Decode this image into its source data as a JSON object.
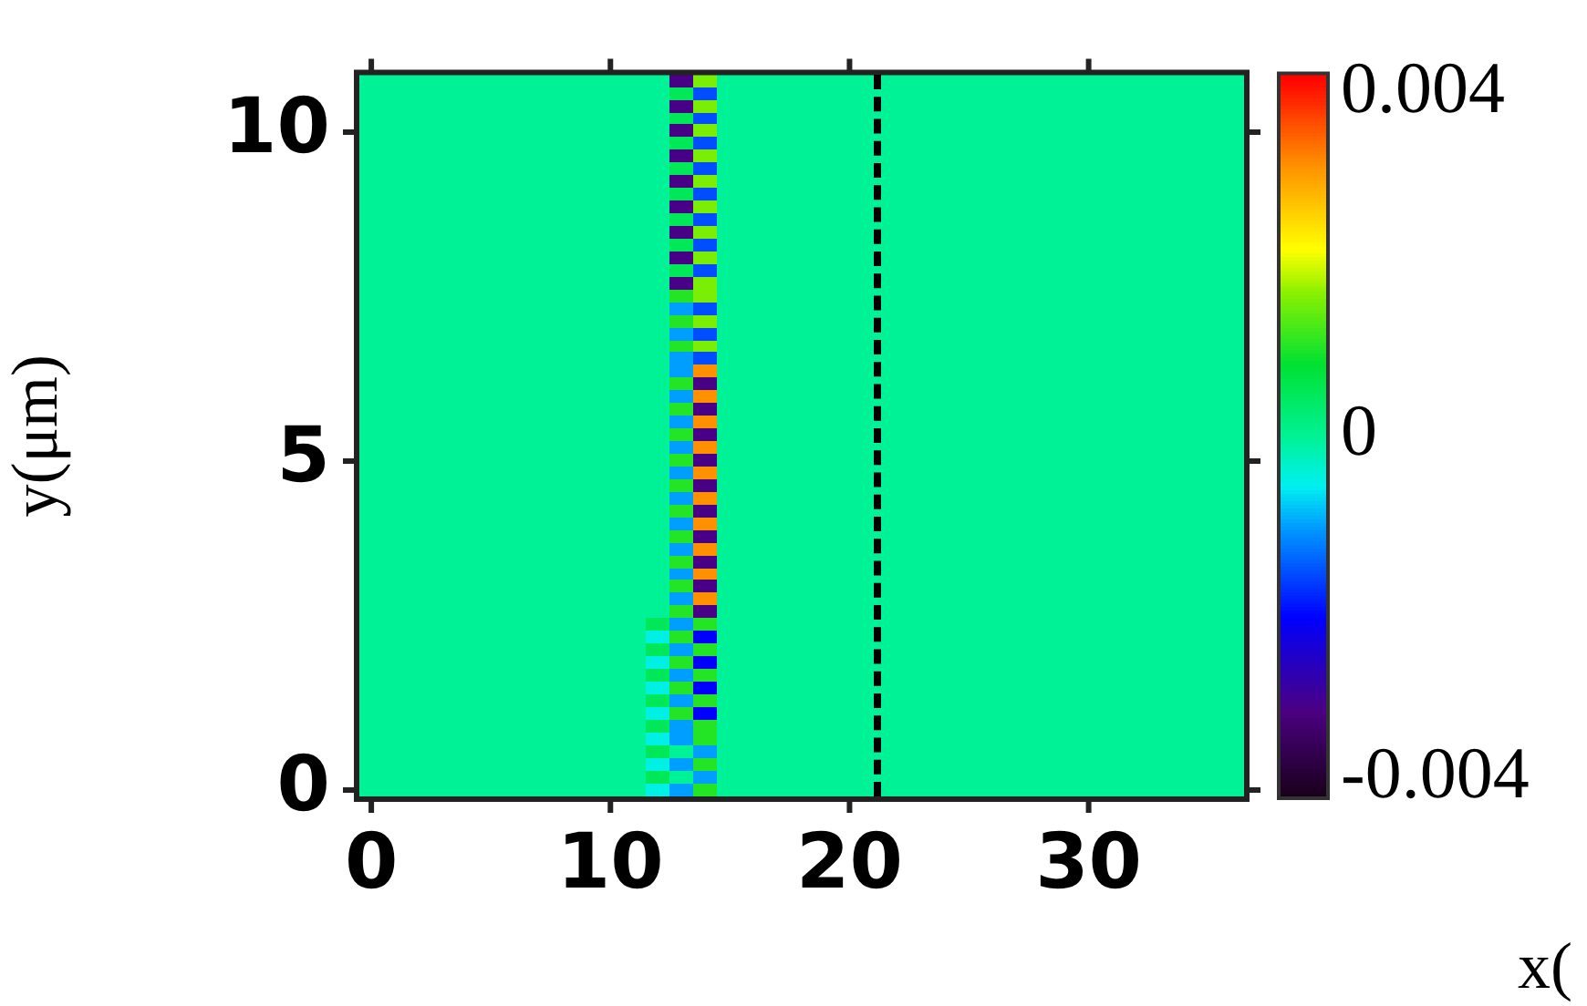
{
  "chart_data": {
    "type": "heatmap",
    "xlabel": "x(",
    "ylabel": "y(μm)",
    "categories": [
      "0",
      null,
      null,
      null,
      null,
      null,
      null,
      null,
      null,
      null,
      "10",
      null,
      null,
      null,
      null,
      null,
      null,
      null,
      null,
      null,
      "20",
      null,
      null,
      null,
      null,
      null,
      null,
      null,
      null,
      null,
      "30",
      null,
      null,
      null,
      null,
      null,
      null
    ],
    "y_categories": [
      null,
      null,
      null,
      null,
      "10",
      null,
      null,
      null,
      null,
      null,
      null,
      null,
      null,
      null,
      null,
      null,
      null,
      null,
      null,
      null,
      null,
      null,
      null,
      null,
      null,
      null,
      null,
      null,
      null,
      null,
      "5",
      null,
      null,
      null,
      null,
      null,
      null,
      null,
      null,
      null,
      null,
      null,
      null,
      null,
      null,
      null,
      null,
      null,
      null,
      null,
      null,
      null,
      null,
      null,
      null,
      null,
      "0"
    ],
    "clim": [
      -0.004,
      0.004
    ],
    "cticks": [
      -0.004,
      0,
      0.004
    ],
    "cells": [
      [
        0,
        0,
        0,
        0,
        0,
        0,
        0,
        0,
        0,
        0,
        0,
        0,
        0,
        -0.003,
        0.0015,
        0,
        0,
        0,
        0,
        0,
        0,
        0,
        0,
        0,
        0,
        0,
        0,
        0,
        0,
        0,
        0,
        0,
        0,
        0,
        0,
        0,
        0
      ],
      [
        0,
        0,
        0,
        0,
        0,
        0,
        0,
        0,
        0,
        0,
        0,
        0,
        0,
        0.0005,
        -0.0015,
        0,
        0,
        0,
        0,
        0,
        0,
        0,
        0,
        0,
        0,
        0,
        0,
        0,
        0,
        0,
        0,
        0,
        0,
        0,
        0,
        0,
        0
      ],
      [
        0,
        0,
        0,
        0,
        0,
        0,
        0,
        0,
        0,
        0,
        0,
        0,
        0,
        -0.003,
        0.0015,
        0,
        0,
        0,
        0,
        0,
        0,
        0,
        0,
        0,
        0,
        0,
        0,
        0,
        0,
        0,
        0,
        0,
        0,
        0,
        0,
        0,
        0
      ],
      [
        0,
        0,
        0,
        0,
        0,
        0,
        0,
        0,
        0,
        0,
        0,
        0,
        0,
        0.0005,
        -0.0015,
        0,
        0,
        0,
        0,
        0,
        0,
        0,
        0,
        0,
        0,
        0,
        0,
        0,
        0,
        0,
        0,
        0,
        0,
        0,
        0,
        0,
        0
      ],
      [
        0,
        0,
        0,
        0,
        0,
        0,
        0,
        0,
        0,
        0,
        0,
        0,
        0,
        -0.003,
        0.0015,
        0,
        0,
        0,
        0,
        0,
        0,
        0,
        0,
        0,
        0,
        0,
        0,
        0,
        0,
        0,
        0,
        0,
        0,
        0,
        0,
        0,
        0
      ],
      [
        0,
        0,
        0,
        0,
        0,
        0,
        0,
        0,
        0,
        0,
        0,
        0,
        0,
        0.0005,
        -0.0015,
        0,
        0,
        0,
        0,
        0,
        0,
        0,
        0,
        0,
        0,
        0,
        0,
        0,
        0,
        0,
        0,
        0,
        0,
        0,
        0,
        0,
        0
      ],
      [
        0,
        0,
        0,
        0,
        0,
        0,
        0,
        0,
        0,
        0,
        0,
        0,
        0,
        -0.003,
        0.0015,
        0,
        0,
        0,
        0,
        0,
        0,
        0,
        0,
        0,
        0,
        0,
        0,
        0,
        0,
        0,
        0,
        0,
        0,
        0,
        0,
        0,
        0
      ],
      [
        0,
        0,
        0,
        0,
        0,
        0,
        0,
        0,
        0,
        0,
        0,
        0,
        0,
        0.0005,
        -0.0015,
        0,
        0,
        0,
        0,
        0,
        0,
        0,
        0,
        0,
        0,
        0,
        0,
        0,
        0,
        0,
        0,
        0,
        0,
        0,
        0,
        0,
        0
      ],
      [
        0,
        0,
        0,
        0,
        0,
        0,
        0,
        0,
        0,
        0,
        0,
        0,
        0,
        -0.003,
        0.0015,
        0,
        0,
        0,
        0,
        0,
        0,
        0,
        0,
        0,
        0,
        0,
        0,
        0,
        0,
        0,
        0,
        0,
        0,
        0,
        0,
        0,
        0
      ],
      [
        0,
        0,
        0,
        0,
        0,
        0,
        0,
        0,
        0,
        0,
        0,
        0,
        0,
        0.0005,
        -0.0015,
        0,
        0,
        0,
        0,
        0,
        0,
        0,
        0,
        0,
        0,
        0,
        0,
        0,
        0,
        0,
        0,
        0,
        0,
        0,
        0,
        0,
        0
      ],
      [
        0,
        0,
        0,
        0,
        0,
        0,
        0,
        0,
        0,
        0,
        0,
        0,
        0,
        -0.003,
        0.0015,
        0,
        0,
        0,
        0,
        0,
        0,
        0,
        0,
        0,
        0,
        0,
        0,
        0,
        0,
        0,
        0,
        0,
        0,
        0,
        0,
        0,
        0
      ],
      [
        0,
        0,
        0,
        0,
        0,
        0,
        0,
        0,
        0,
        0,
        0,
        0,
        0,
        0.0005,
        -0.0015,
        0,
        0,
        0,
        0,
        0,
        0,
        0,
        0,
        0,
        0,
        0,
        0,
        0,
        0,
        0,
        0,
        0,
        0,
        0,
        0,
        0,
        0
      ],
      [
        0,
        0,
        0,
        0,
        0,
        0,
        0,
        0,
        0,
        0,
        0,
        0,
        0,
        -0.003,
        0.0015,
        0,
        0,
        0,
        0,
        0,
        0,
        0,
        0,
        0,
        0,
        0,
        0,
        0,
        0,
        0,
        0,
        0,
        0,
        0,
        0,
        0,
        0
      ],
      [
        0,
        0,
        0,
        0,
        0,
        0,
        0,
        0,
        0,
        0,
        0,
        0,
        0,
        0.0005,
        -0.0015,
        0,
        0,
        0,
        0,
        0,
        0,
        0,
        0,
        0,
        0,
        0,
        0,
        0,
        0,
        0,
        0,
        0,
        0,
        0,
        0,
        0,
        0
      ],
      [
        0,
        0,
        0,
        0,
        0,
        0,
        0,
        0,
        0,
        0,
        0,
        0,
        0,
        -0.003,
        0.0015,
        0,
        0,
        0,
        0,
        0,
        0,
        0,
        0,
        0,
        0,
        0,
        0,
        0,
        0,
        0,
        0,
        0,
        0,
        0,
        0,
        0,
        0
      ],
      [
        0,
        0,
        0,
        0,
        0,
        0,
        0,
        0,
        0,
        0,
        0,
        0,
        0,
        0.0005,
        -0.0015,
        0,
        0,
        0,
        0,
        0,
        0,
        0,
        0,
        0,
        0,
        0,
        0,
        0,
        0,
        0,
        0,
        0,
        0,
        0,
        0,
        0,
        0
      ],
      [
        0,
        0,
        0,
        0,
        0,
        0,
        0,
        0,
        0,
        0,
        0,
        0,
        0,
        -0.003,
        0.0015,
        0,
        0,
        0,
        0,
        0,
        0,
        0,
        0,
        0,
        0,
        0,
        0,
        0,
        0,
        0,
        0,
        0,
        0,
        0,
        0,
        0,
        0
      ],
      [
        0,
        0,
        0,
        0,
        0,
        0,
        0,
        0,
        0,
        0,
        0,
        0,
        0,
        0.001,
        0.0015,
        0,
        0,
        0,
        0,
        0,
        0,
        0,
        0,
        0,
        0,
        0,
        0,
        0,
        0,
        0,
        0,
        0,
        0,
        0,
        0,
        0,
        0
      ],
      [
        0,
        0,
        0,
        0,
        0,
        0,
        0,
        0,
        0,
        0,
        0,
        0,
        0,
        -0.001,
        -0.0015,
        0,
        0,
        0,
        0,
        0,
        0,
        0,
        0,
        0,
        0,
        0,
        0,
        0,
        0,
        0,
        0,
        0,
        0,
        0,
        0,
        0,
        0
      ],
      [
        0,
        0,
        0,
        0,
        0,
        0,
        0,
        0,
        0,
        0,
        0,
        0,
        0,
        0.001,
        0.0015,
        0,
        0,
        0,
        0,
        0,
        0,
        0,
        0,
        0,
        0,
        0,
        0,
        0,
        0,
        0,
        0,
        0,
        0,
        0,
        0,
        0,
        0
      ],
      [
        0,
        0,
        0,
        0,
        0,
        0,
        0,
        0,
        0,
        0,
        0,
        0,
        0,
        -0.001,
        -0.0015,
        0,
        0,
        0,
        0,
        0,
        0,
        0,
        0,
        0,
        0,
        0,
        0,
        0,
        0,
        0,
        0,
        0,
        0,
        0,
        0,
        0,
        0
      ],
      [
        0,
        0,
        0,
        0,
        0,
        0,
        0,
        0,
        0,
        0,
        0,
        0,
        0,
        0.001,
        0.0015,
        0,
        0,
        0,
        0,
        0,
        0,
        0,
        0,
        0,
        0,
        0,
        0,
        0,
        0,
        0,
        0,
        0,
        0,
        0,
        0,
        0,
        0
      ],
      [
        0,
        0,
        0,
        0,
        0,
        0,
        0,
        0,
        0,
        0,
        0,
        0,
        0,
        -0.001,
        -0.0015,
        0,
        0,
        0,
        0,
        0,
        0,
        0,
        0,
        0,
        0,
        0,
        0,
        0,
        0,
        0,
        0,
        0,
        0,
        0,
        0,
        0,
        0
      ],
      [
        0,
        0,
        0,
        0,
        0,
        0,
        0,
        0,
        0,
        0,
        0,
        0,
        0,
        -0.001,
        0.003,
        0,
        0,
        0,
        0,
        0,
        0,
        0,
        0,
        0,
        0,
        0,
        0,
        0,
        0,
        0,
        0,
        0,
        0,
        0,
        0,
        0,
        0
      ],
      [
        0,
        0,
        0,
        0,
        0,
        0,
        0,
        0,
        0,
        0,
        0,
        0,
        0,
        0.001,
        -0.003,
        0,
        0,
        0,
        0,
        0,
        0,
        0,
        0,
        0,
        0,
        0,
        0,
        0,
        0,
        0,
        0,
        0,
        0,
        0,
        0,
        0,
        0
      ],
      [
        0,
        0,
        0,
        0,
        0,
        0,
        0,
        0,
        0,
        0,
        0,
        0,
        0,
        -0.001,
        0.003,
        0,
        0,
        0,
        0,
        0,
        0,
        0,
        0,
        0,
        0,
        0,
        0,
        0,
        0,
        0,
        0,
        0,
        0,
        0,
        0,
        0,
        0
      ],
      [
        0,
        0,
        0,
        0,
        0,
        0,
        0,
        0,
        0,
        0,
        0,
        0,
        0,
        0.001,
        -0.003,
        0,
        0,
        0,
        0,
        0,
        0,
        0,
        0,
        0,
        0,
        0,
        0,
        0,
        0,
        0,
        0,
        0,
        0,
        0,
        0,
        0,
        0
      ],
      [
        0,
        0,
        0,
        0,
        0,
        0,
        0,
        0,
        0,
        0,
        0,
        0,
        0,
        -0.001,
        0.003,
        0,
        0,
        0,
        0,
        0,
        0,
        0,
        0,
        0,
        0,
        0,
        0,
        0,
        0,
        0,
        0,
        0,
        0,
        0,
        0,
        0,
        0
      ],
      [
        0,
        0,
        0,
        0,
        0,
        0,
        0,
        0,
        0,
        0,
        0,
        0,
        0,
        0.001,
        -0.003,
        0,
        0,
        0,
        0,
        0,
        0,
        0,
        0,
        0,
        0,
        0,
        0,
        0,
        0,
        0,
        0,
        0,
        0,
        0,
        0,
        0,
        0
      ],
      [
        0,
        0,
        0,
        0,
        0,
        0,
        0,
        0,
        0,
        0,
        0,
        0,
        0,
        -0.001,
        0.003,
        0,
        0,
        0,
        0,
        0,
        0,
        0,
        0,
        0,
        0,
        0,
        0,
        0,
        0,
        0,
        0,
        0,
        0,
        0,
        0,
        0,
        0
      ],
      [
        0,
        0,
        0,
        0,
        0,
        0,
        0,
        0,
        0,
        0,
        0,
        0,
        0,
        0.001,
        -0.003,
        0,
        0,
        0,
        0,
        0,
        0,
        0,
        0,
        0,
        0,
        0,
        0,
        0,
        0,
        0,
        0,
        0,
        0,
        0,
        0,
        0,
        0
      ],
      [
        0,
        0,
        0,
        0,
        0,
        0,
        0,
        0,
        0,
        0,
        0,
        0,
        0,
        -0.001,
        0.003,
        0,
        0,
        0,
        0,
        0,
        0,
        0,
        0,
        0,
        0,
        0,
        0,
        0,
        0,
        0,
        0,
        0,
        0,
        0,
        0,
        0,
        0
      ],
      [
        0,
        0,
        0,
        0,
        0,
        0,
        0,
        0,
        0,
        0,
        0,
        0,
        0,
        0.001,
        -0.003,
        0,
        0,
        0,
        0,
        0,
        0,
        0,
        0,
        0,
        0,
        0,
        0,
        0,
        0,
        0,
        0,
        0,
        0,
        0,
        0,
        0,
        0
      ],
      [
        0,
        0,
        0,
        0,
        0,
        0,
        0,
        0,
        0,
        0,
        0,
        0,
        0,
        -0.001,
        0.003,
        0,
        0,
        0,
        0,
        0,
        0,
        0,
        0,
        0,
        0,
        0,
        0,
        0,
        0,
        0,
        0,
        0,
        0,
        0,
        0,
        0,
        0
      ],
      [
        0,
        0,
        0,
        0,
        0,
        0,
        0,
        0,
        0,
        0,
        0,
        0,
        0,
        0.001,
        -0.003,
        0,
        0,
        0,
        0,
        0,
        0,
        0,
        0,
        0,
        0,
        0,
        0,
        0,
        0,
        0,
        0,
        0,
        0,
        0,
        0,
        0,
        0
      ],
      [
        0,
        0,
        0,
        0,
        0,
        0,
        0,
        0,
        0,
        0,
        0,
        0,
        0,
        -0.001,
        0.003,
        0,
        0,
        0,
        0,
        0,
        0,
        0,
        0,
        0,
        0,
        0,
        0,
        0,
        0,
        0,
        0,
        0,
        0,
        0,
        0,
        0,
        0
      ],
      [
        0,
        0,
        0,
        0,
        0,
        0,
        0,
        0,
        0,
        0,
        0,
        0,
        0,
        0.001,
        -0.003,
        0,
        0,
        0,
        0,
        0,
        0,
        0,
        0,
        0,
        0,
        0,
        0,
        0,
        0,
        0,
        0,
        0,
        0,
        0,
        0,
        0,
        0
      ],
      [
        0,
        0,
        0,
        0,
        0,
        0,
        0,
        0,
        0,
        0,
        0,
        0,
        0,
        -0.001,
        0.003,
        0,
        0,
        0,
        0,
        0,
        0,
        0,
        0,
        0,
        0,
        0,
        0,
        0,
        0,
        0,
        0,
        0,
        0,
        0,
        0,
        0,
        0
      ],
      [
        0,
        0,
        0,
        0,
        0,
        0,
        0,
        0,
        0,
        0,
        0,
        0,
        0,
        0.001,
        -0.003,
        0,
        0,
        0,
        0,
        0,
        0,
        0,
        0,
        0,
        0,
        0,
        0,
        0,
        0,
        0,
        0,
        0,
        0,
        0,
        0,
        0,
        0
      ],
      [
        0,
        0,
        0,
        0,
        0,
        0,
        0,
        0,
        0,
        0,
        0,
        0,
        0,
        -0.001,
        0.003,
        0,
        0,
        0,
        0,
        0,
        0,
        0,
        0,
        0,
        0,
        0,
        0,
        0,
        0,
        0,
        0,
        0,
        0,
        0,
        0,
        0,
        0
      ],
      [
        0,
        0,
        0,
        0,
        0,
        0,
        0,
        0,
        0,
        0,
        0,
        0,
        0,
        0.001,
        -0.003,
        0,
        0,
        0,
        0,
        0,
        0,
        0,
        0,
        0,
        0,
        0,
        0,
        0,
        0,
        0,
        0,
        0,
        0,
        0,
        0,
        0,
        0
      ],
      [
        0,
        0,
        0,
        0,
        0,
        0,
        0,
        0,
        0,
        0,
        0,
        0,
        0,
        -0.001,
        0.003,
        0,
        0,
        0,
        0,
        0,
        0,
        0,
        0,
        0,
        0,
        0,
        0,
        0,
        0,
        0,
        0,
        0,
        0,
        0,
        0,
        0,
        0
      ],
      [
        0,
        0,
        0,
        0,
        0,
        0,
        0,
        0,
        0,
        0,
        0,
        0,
        0,
        0.001,
        -0.003,
        0,
        0,
        0,
        0,
        0,
        0,
        0,
        0,
        0,
        0,
        0,
        0,
        0,
        0,
        0,
        0,
        0,
        0,
        0,
        0,
        0,
        0
      ],
      [
        0,
        0,
        0,
        0,
        0,
        0,
        0,
        0,
        0,
        0,
        0,
        0,
        0.0005,
        -0.001,
        0.001,
        0,
        0,
        0,
        0,
        0,
        0,
        0,
        0,
        0,
        0,
        0,
        0,
        0,
        0,
        0,
        0,
        0,
        0,
        0,
        0,
        0,
        0
      ],
      [
        0,
        0,
        0,
        0,
        0,
        0,
        0,
        0,
        0,
        0,
        0,
        0,
        -0.0005,
        0.001,
        -0.002,
        0,
        0,
        0,
        0,
        0,
        0,
        0,
        0,
        0,
        0,
        0,
        0,
        0,
        0,
        0,
        0,
        0,
        0,
        0,
        0,
        0,
        0
      ],
      [
        0,
        0,
        0,
        0,
        0,
        0,
        0,
        0,
        0,
        0,
        0,
        0,
        0.0005,
        -0.001,
        0.001,
        0,
        0,
        0,
        0,
        0,
        0,
        0,
        0,
        0,
        0,
        0,
        0,
        0,
        0,
        0,
        0,
        0,
        0,
        0,
        0,
        0,
        0
      ],
      [
        0,
        0,
        0,
        0,
        0,
        0,
        0,
        0,
        0,
        0,
        0,
        0,
        -0.0005,
        0.001,
        -0.002,
        0,
        0,
        0,
        0,
        0,
        0,
        0,
        0,
        0,
        0,
        0,
        0,
        0,
        0,
        0,
        0,
        0,
        0,
        0,
        0,
        0,
        0
      ],
      [
        0,
        0,
        0,
        0,
        0,
        0,
        0,
        0,
        0,
        0,
        0,
        0,
        0.0005,
        -0.001,
        0.001,
        0,
        0,
        0,
        0,
        0,
        0,
        0,
        0,
        0,
        0,
        0,
        0,
        0,
        0,
        0,
        0,
        0,
        0,
        0,
        0,
        0,
        0
      ],
      [
        0,
        0,
        0,
        0,
        0,
        0,
        0,
        0,
        0,
        0,
        0,
        0,
        -0.0005,
        0.001,
        -0.002,
        0,
        0,
        0,
        0,
        0,
        0,
        0,
        0,
        0,
        0,
        0,
        0,
        0,
        0,
        0,
        0,
        0,
        0,
        0,
        0,
        0,
        0
      ],
      [
        0,
        0,
        0,
        0,
        0,
        0,
        0,
        0,
        0,
        0,
        0,
        0,
        0.0005,
        -0.001,
        0.001,
        0,
        0,
        0,
        0,
        0,
        0,
        0,
        0,
        0,
        0,
        0,
        0,
        0,
        0,
        0,
        0,
        0,
        0,
        0,
        0,
        0,
        0
      ],
      [
        0,
        0,
        0,
        0,
        0,
        0,
        0,
        0,
        0,
        0,
        0,
        0,
        -0.0005,
        0.001,
        -0.002,
        0,
        0,
        0,
        0,
        0,
        0,
        0,
        0,
        0,
        0,
        0,
        0,
        0,
        0,
        0,
        0,
        0,
        0,
        0,
        0,
        0,
        0
      ],
      [
        0,
        0,
        0,
        0,
        0,
        0,
        0,
        0,
        0,
        0,
        0,
        0,
        0.0005,
        -0.001,
        0.001,
        0,
        0,
        0,
        0,
        0,
        0,
        0,
        0,
        0,
        0,
        0,
        0,
        0,
        0,
        0,
        0,
        0,
        0,
        0,
        0,
        0,
        0
      ],
      [
        0,
        0,
        0,
        0,
        0,
        0,
        0,
        0,
        0,
        0,
        0,
        0,
        -0.0005,
        -0.001,
        0.001,
        0,
        0,
        0,
        0,
        0,
        0,
        0,
        0,
        0,
        0,
        0,
        0,
        0,
        0,
        0,
        0,
        0,
        0,
        0,
        0,
        0,
        0
      ],
      [
        0,
        0,
        0,
        0,
        0,
        0,
        0,
        0,
        0,
        0,
        0,
        0,
        0.0005,
        0,
        -0.001,
        0,
        0,
        0,
        0,
        0,
        0,
        0,
        0,
        0,
        0,
        0,
        0,
        0,
        0,
        0,
        0,
        0,
        0,
        0,
        0,
        0,
        0
      ],
      [
        0,
        0,
        0,
        0,
        0,
        0,
        0,
        0,
        0,
        0,
        0,
        0,
        -0.0005,
        -0.001,
        0.001,
        0,
        0,
        0,
        0,
        0,
        0,
        0,
        0,
        0,
        0,
        0,
        0,
        0,
        0,
        0,
        0,
        0,
        0,
        0,
        0,
        0,
        0
      ],
      [
        0,
        0,
        0,
        0,
        0,
        0,
        0,
        0,
        0,
        0,
        0,
        0,
        0.0005,
        0,
        -0.001,
        0,
        0,
        0,
        0,
        0,
        0,
        0,
        0,
        0,
        0,
        0,
        0,
        0,
        0,
        0,
        0,
        0,
        0,
        0,
        0,
        0,
        0
      ],
      [
        0,
        0,
        0,
        0,
        0,
        0,
        0,
        0,
        0,
        0,
        0,
        0,
        -0.0005,
        -0.001,
        0.001,
        0,
        0,
        0,
        0,
        0,
        0,
        0,
        0,
        0,
        0,
        0,
        0,
        0,
        0,
        0,
        0,
        0,
        0,
        0,
        0,
        0,
        0
      ]
    ]
  }
}
